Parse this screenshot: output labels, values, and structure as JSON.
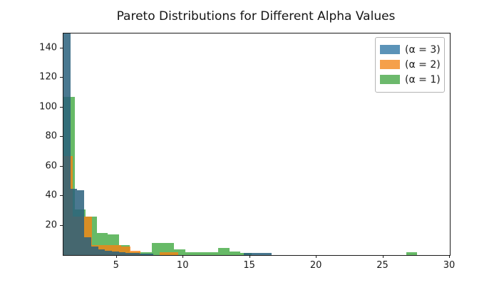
{
  "chart_data": {
    "type": "bar",
    "subtype": "overlapping-histograms",
    "title": "Pareto Distributions for Different Alpha Values",
    "xlabel": "",
    "ylabel": "",
    "xlim": [
      1,
      30
    ],
    "ylim": [
      0,
      150
    ],
    "x_ticks": [
      5,
      10,
      15,
      20,
      25,
      30
    ],
    "y_ticks": [
      20,
      40,
      60,
      80,
      100,
      120,
      140
    ],
    "grid": "off",
    "legend_position": "upper-right",
    "legend": [
      {
        "label": "(α = 3)",
        "color": "#5b93b8"
      },
      {
        "label": "(α = 2)",
        "color": "#f5a04b"
      },
      {
        "label": "(α = 1)",
        "color": "#6cb96c"
      }
    ],
    "series": [
      {
        "name": "alpha=1",
        "legend_label": "(α = 1)",
        "fill": "rgba(44,160,44,0.72)",
        "bin_start": 1.0,
        "bin_width": 0.83,
        "counts": [
          107,
          31,
          26,
          15,
          14,
          7,
          2,
          2,
          8,
          8,
          4,
          2,
          1.7,
          1.7,
          5,
          2.5,
          1.5,
          0,
          0,
          0,
          0,
          0,
          0,
          0,
          0,
          0,
          0,
          0,
          0,
          0,
          0,
          2
        ]
      },
      {
        "name": "alpha=2",
        "legend_label": "(α = 2)",
        "fill": "rgba(255,127,14,0.75)",
        "bin_start": 1.0,
        "bin_width": 0.72,
        "counts": [
          67,
          26,
          26,
          7,
          7,
          7,
          6,
          3,
          0,
          0,
          2,
          2
        ]
      },
      {
        "name": "alpha=3",
        "legend_label": "(α = 3)",
        "fill": "rgba(42,96,125,0.85)",
        "bin_start": 1.0,
        "bin_width": 0.52,
        "counts": [
          155,
          45,
          44,
          12,
          6,
          4,
          3,
          2.5,
          2,
          1.5,
          1.5,
          1,
          1,
          0,
          0,
          0,
          0,
          0,
          0,
          0,
          0,
          0,
          0,
          0,
          0,
          0,
          1.6,
          1.6,
          1.6,
          1.6
        ]
      }
    ],
    "note_draw_order": "series listed bottom-to-top (alpha=1 first, alpha=3 on top)"
  }
}
